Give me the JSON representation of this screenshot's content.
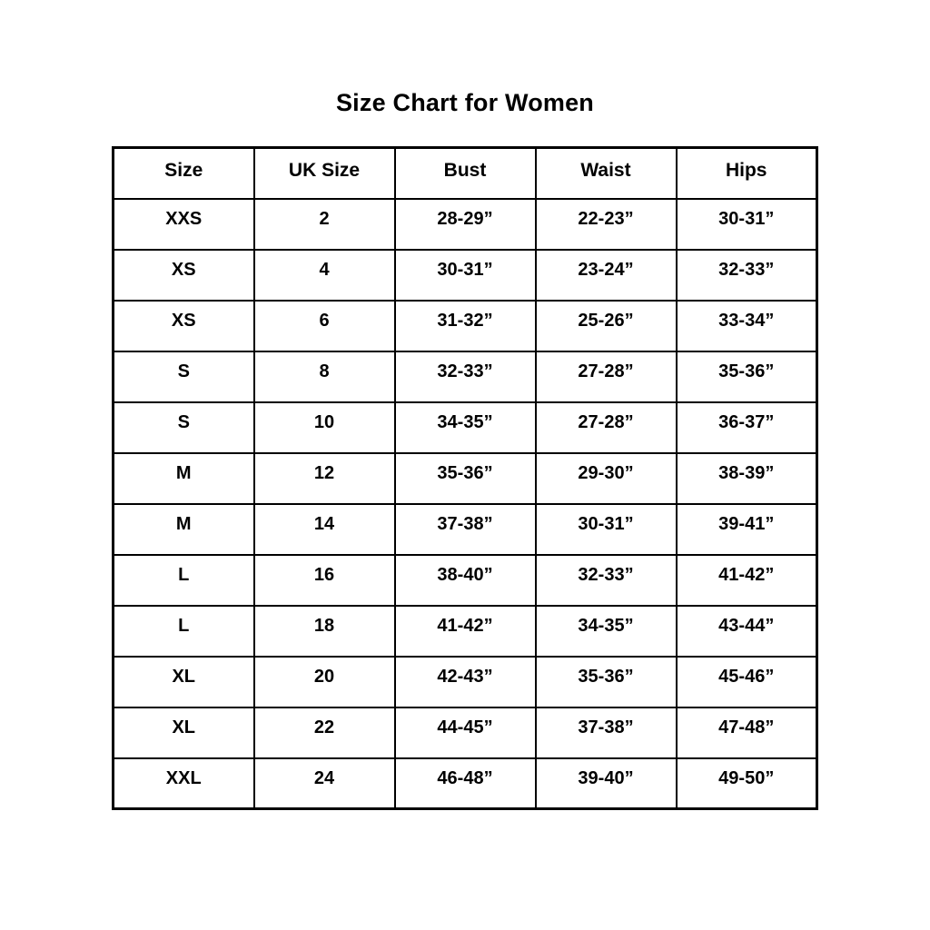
{
  "page": {
    "title": "Size Chart for Women"
  },
  "chart_data": {
    "type": "table",
    "title": "Size Chart for Women",
    "columns": [
      "Size",
      "UK Size",
      "Bust",
      "Waist",
      "Hips"
    ],
    "rows": [
      [
        "XXS",
        "2",
        "28-29”",
        "22-23”",
        "30-31”"
      ],
      [
        "XS",
        "4",
        "30-31”",
        "23-24”",
        "32-33”"
      ],
      [
        "XS",
        "6",
        "31-32”",
        "25-26”",
        "33-34”"
      ],
      [
        "S",
        "8",
        "32-33”",
        "27-28”",
        "35-36”"
      ],
      [
        "S",
        "10",
        "34-35”",
        "27-28”",
        "36-37”"
      ],
      [
        "M",
        "12",
        "35-36”",
        "29-30”",
        "38-39”"
      ],
      [
        "M",
        "14",
        "37-38”",
        "30-31”",
        "39-41”"
      ],
      [
        "L",
        "16",
        "38-40”",
        "32-33”",
        "41-42”"
      ],
      [
        "L",
        "18",
        "41-42”",
        "34-35”",
        "43-44”"
      ],
      [
        "XL",
        "20",
        "42-43”",
        "35-36”",
        "45-46”"
      ],
      [
        "XL",
        "22",
        "44-45”",
        "37-38”",
        "47-48”"
      ],
      [
        "XXL",
        "24",
        "46-48”",
        "39-40”",
        "49-50”"
      ]
    ],
    "layout": {
      "grid": true,
      "text_color": "#000000",
      "border_color": "#000000",
      "background_color": "#ffffff"
    }
  }
}
